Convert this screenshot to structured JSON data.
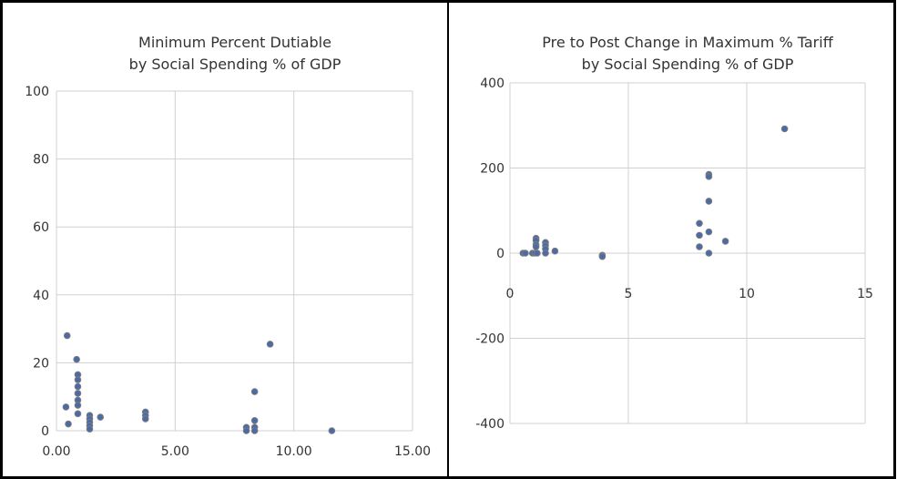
{
  "chart_data": [
    {
      "type": "scatter",
      "title_lines": [
        "Minimum Percent Dutiable",
        "by Social Spending % of GDP"
      ],
      "xlabel": "",
      "ylabel": "",
      "xlim": [
        0,
        15
      ],
      "ylim": [
        0,
        100
      ],
      "xticks": [
        0,
        5,
        10,
        15
      ],
      "xtick_labels": [
        "0.00",
        "5.00",
        "10.00",
        "15.00"
      ],
      "yticks": [
        0,
        20,
        40,
        60,
        80,
        100
      ],
      "ytick_labels": [
        "0",
        "20",
        "40",
        "60",
        "80",
        "100"
      ],
      "grid": true,
      "points": [
        [
          0.45,
          28
        ],
        [
          0.4,
          7
        ],
        [
          0.5,
          2
        ],
        [
          0.85,
          21
        ],
        [
          0.9,
          16.5
        ],
        [
          0.9,
          15
        ],
        [
          0.9,
          13
        ],
        [
          0.9,
          11
        ],
        [
          0.9,
          9
        ],
        [
          0.9,
          7.5
        ],
        [
          0.9,
          5
        ],
        [
          1.4,
          4.5
        ],
        [
          1.4,
          3.5
        ],
        [
          1.4,
          2.5
        ],
        [
          1.4,
          1.5
        ],
        [
          1.4,
          0.5
        ],
        [
          1.85,
          4
        ],
        [
          3.75,
          5.5
        ],
        [
          3.75,
          4.5
        ],
        [
          3.75,
          3.5
        ],
        [
          8.0,
          1
        ],
        [
          8.0,
          0
        ],
        [
          8.35,
          11.5
        ],
        [
          8.35,
          3
        ],
        [
          8.35,
          1
        ],
        [
          8.35,
          0
        ],
        [
          9.0,
          25.5
        ],
        [
          11.6,
          0
        ]
      ]
    },
    {
      "type": "scatter",
      "title_lines": [
        "Pre to Post Change in Maximum % Tariff",
        "by Social Spending % of GDP"
      ],
      "xlabel": "",
      "ylabel": "",
      "xlim": [
        0,
        15
      ],
      "ylim": [
        -400,
        400
      ],
      "xticks": [
        0,
        5,
        10,
        15
      ],
      "xtick_labels": [
        "0",
        "5",
        "10",
        "15"
      ],
      "yticks": [
        -400,
        -200,
        0,
        200,
        400
      ],
      "ytick_labels": [
        "-400",
        "-200",
        "0",
        "200",
        "400"
      ],
      "grid": true,
      "points": [
        [
          0.55,
          0
        ],
        [
          0.65,
          0
        ],
        [
          0.95,
          0
        ],
        [
          1.05,
          0
        ],
        [
          1.15,
          0
        ],
        [
          1.1,
          35
        ],
        [
          1.1,
          30
        ],
        [
          1.1,
          20
        ],
        [
          1.1,
          15
        ],
        [
          1.5,
          25
        ],
        [
          1.5,
          18
        ],
        [
          1.5,
          10
        ],
        [
          1.5,
          0
        ],
        [
          1.9,
          5
        ],
        [
          3.9,
          -5
        ],
        [
          3.9,
          -8
        ],
        [
          8.0,
          70
        ],
        [
          8.0,
          42
        ],
        [
          8.0,
          15
        ],
        [
          8.4,
          185
        ],
        [
          8.4,
          180
        ],
        [
          8.4,
          122
        ],
        [
          8.4,
          50
        ],
        [
          8.4,
          0
        ],
        [
          9.1,
          28
        ],
        [
          11.6,
          292
        ]
      ]
    }
  ]
}
